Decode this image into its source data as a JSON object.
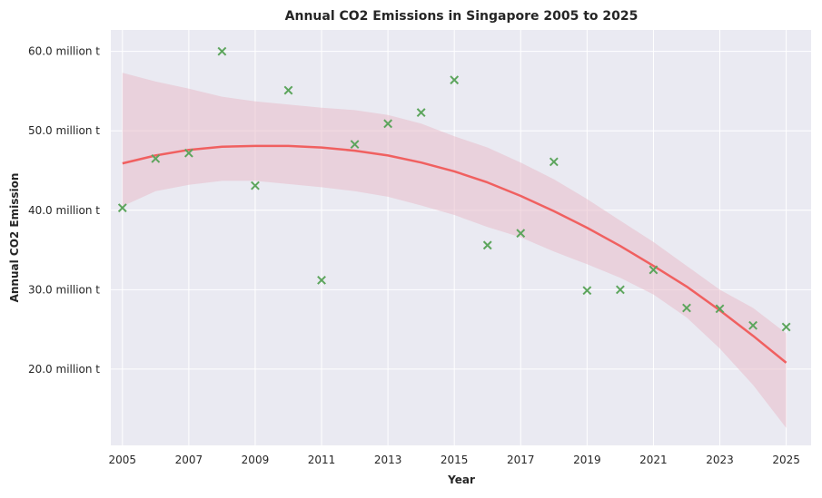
{
  "chart_data": {
    "type": "scatter",
    "title": "Annual CO2 Emissions in Singapore 2005 to 2025",
    "xlabel": "Year",
    "ylabel": "Annual CO2 Emission",
    "xlim": [
      2004.65,
      2025.75
    ],
    "ylim": [
      10.4,
      62.7
    ],
    "x_ticks": [
      2005,
      2007,
      2009,
      2011,
      2013,
      2015,
      2017,
      2019,
      2021,
      2023,
      2025
    ],
    "x_tick_labels": [
      "2005",
      "2007",
      "2009",
      "2011",
      "2013",
      "2015",
      "2017",
      "2019",
      "2021",
      "2023",
      "2025"
    ],
    "y_ticks": [
      20,
      30,
      40,
      50,
      60
    ],
    "y_tick_labels": [
      "20.0 million t",
      "30.0 million t",
      "40.0 million t",
      "50.0 million t",
      "60.0 million t"
    ],
    "grid": true,
    "points": {
      "marker": "x",
      "color": "#5da55d",
      "x": [
        2005,
        2006,
        2007,
        2008,
        2009,
        2010,
        2011,
        2012,
        2013,
        2014,
        2015,
        2016,
        2017,
        2018,
        2019,
        2020,
        2021,
        2022,
        2023,
        2024,
        2025
      ],
      "y": [
        40.3,
        46.5,
        47.2,
        60.0,
        43.1,
        55.1,
        31.2,
        48.3,
        50.9,
        52.3,
        56.4,
        35.6,
        37.1,
        46.1,
        29.9,
        30.0,
        32.5,
        27.7,
        27.6,
        25.5,
        25.3
      ]
    },
    "fit_line": {
      "color": "#f06060",
      "x": [
        2005,
        2006,
        2007,
        2008,
        2009,
        2010,
        2011,
        2012,
        2013,
        2014,
        2015,
        2016,
        2017,
        2018,
        2019,
        2020,
        2021,
        2022,
        2023,
        2024,
        2025
      ],
      "y": [
        45.9,
        46.9,
        47.6,
        48.0,
        48.1,
        48.1,
        47.9,
        47.5,
        46.9,
        46.0,
        44.9,
        43.5,
        41.8,
        39.9,
        37.8,
        35.5,
        33.0,
        30.4,
        27.4,
        24.2,
        20.8
      ]
    },
    "confidence_band": {
      "color": "#e8b7c6",
      "x": [
        2005,
        2006,
        2007,
        2008,
        2009,
        2010,
        2011,
        2012,
        2013,
        2014,
        2015,
        2016,
        2017,
        2018,
        2019,
        2020,
        2021,
        2022,
        2023,
        2024,
        2025
      ],
      "upper": [
        57.3,
        56.2,
        55.3,
        54.3,
        53.7,
        53.3,
        52.9,
        52.6,
        52.0,
        50.9,
        49.3,
        47.9,
        46.0,
        43.9,
        41.4,
        38.7,
        36.0,
        33.0,
        30.0,
        27.7,
        24.5
      ],
      "lower": [
        40.5,
        42.4,
        43.2,
        43.7,
        43.7,
        43.3,
        42.9,
        42.4,
        41.7,
        40.6,
        39.4,
        37.9,
        36.6,
        34.8,
        33.2,
        31.5,
        29.4,
        26.5,
        22.6,
        18.0,
        12.6
      ]
    }
  }
}
